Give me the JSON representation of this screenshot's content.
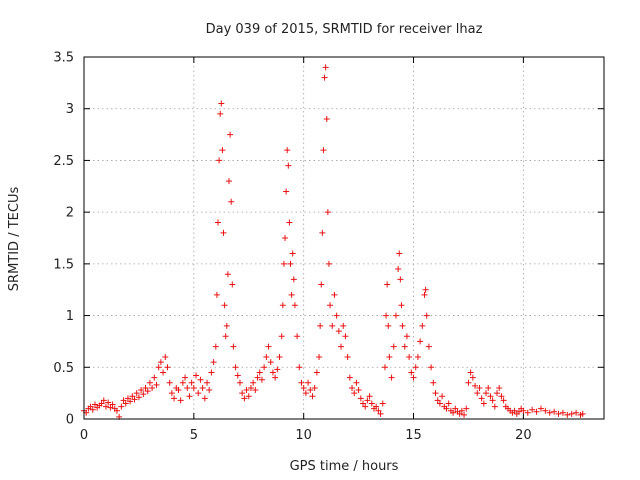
{
  "chart_data": {
    "type": "scatter",
    "title": "Day 039 of 2015, SRMTID for receiver lhaz",
    "xlabel": "GPS time / hours",
    "ylabel": "SRMTID / TECUs",
    "xlim": [
      0,
      23.67
    ],
    "ylim": [
      0,
      3.5
    ],
    "xticks": [
      0,
      5,
      10,
      15,
      20
    ],
    "yticks": [
      0,
      0.5,
      1,
      1.5,
      2,
      2.5,
      3,
      3.5
    ],
    "xtick_labels": [
      "0",
      "5",
      "10",
      "15",
      "20"
    ],
    "ytick_labels": [
      "0",
      "0.5",
      "1",
      "1.5",
      "2",
      "2.5",
      "3",
      "3.5"
    ],
    "grid": true,
    "marker": "+",
    "color": "#e81414",
    "series": [
      {
        "name": "SRMTID",
        "points": [
          [
            0.0,
            0.08
          ],
          [
            0.1,
            0.06
          ],
          [
            0.2,
            0.1
          ],
          [
            0.3,
            0.12
          ],
          [
            0.4,
            0.09
          ],
          [
            0.5,
            0.14
          ],
          [
            0.6,
            0.11
          ],
          [
            0.7,
            0.13
          ],
          [
            0.8,
            0.15
          ],
          [
            0.9,
            0.18
          ],
          [
            1.0,
            0.12
          ],
          [
            1.1,
            0.16
          ],
          [
            1.2,
            0.11
          ],
          [
            1.3,
            0.14
          ],
          [
            1.4,
            0.1
          ],
          [
            1.5,
            0.08
          ],
          [
            1.6,
            0.02
          ],
          [
            1.7,
            0.12
          ],
          [
            1.8,
            0.18
          ],
          [
            1.9,
            0.15
          ],
          [
            2.0,
            0.2
          ],
          [
            2.1,
            0.17
          ],
          [
            2.2,
            0.22
          ],
          [
            2.3,
            0.19
          ],
          [
            2.4,
            0.25
          ],
          [
            2.5,
            0.21
          ],
          [
            2.6,
            0.28
          ],
          [
            2.7,
            0.24
          ],
          [
            2.8,
            0.3
          ],
          [
            2.9,
            0.27
          ],
          [
            3.0,
            0.35
          ],
          [
            3.1,
            0.3
          ],
          [
            3.2,
            0.4
          ],
          [
            3.3,
            0.33
          ],
          [
            3.4,
            0.5
          ],
          [
            3.5,
            0.55
          ],
          [
            3.6,
            0.45
          ],
          [
            3.7,
            0.6
          ],
          [
            3.8,
            0.5
          ],
          [
            3.9,
            0.35
          ],
          [
            4.0,
            0.25
          ],
          [
            4.1,
            0.2
          ],
          [
            4.2,
            0.3
          ],
          [
            4.3,
            0.28
          ],
          [
            4.4,
            0.18
          ],
          [
            4.5,
            0.35
          ],
          [
            4.6,
            0.4
          ],
          [
            4.7,
            0.3
          ],
          [
            4.8,
            0.22
          ],
          [
            4.9,
            0.35
          ],
          [
            5.0,
            0.3
          ],
          [
            5.1,
            0.42
          ],
          [
            5.2,
            0.25
          ],
          [
            5.3,
            0.38
          ],
          [
            5.4,
            0.3
          ],
          [
            5.5,
            0.2
          ],
          [
            5.6,
            0.35
          ],
          [
            5.7,
            0.28
          ],
          [
            5.8,
            0.45
          ],
          [
            5.9,
            0.55
          ],
          [
            6.0,
            0.7
          ],
          [
            6.05,
            1.2
          ],
          [
            6.1,
            1.9
          ],
          [
            6.15,
            2.5
          ],
          [
            6.2,
            2.95
          ],
          [
            6.25,
            3.05
          ],
          [
            6.3,
            2.6
          ],
          [
            6.35,
            1.8
          ],
          [
            6.4,
            1.1
          ],
          [
            6.45,
            0.8
          ],
          [
            6.5,
            0.9
          ],
          [
            6.55,
            1.4
          ],
          [
            6.6,
            2.3
          ],
          [
            6.65,
            2.75
          ],
          [
            6.7,
            2.1
          ],
          [
            6.75,
            1.3
          ],
          [
            6.8,
            0.7
          ],
          [
            6.9,
            0.5
          ],
          [
            7.0,
            0.42
          ],
          [
            7.1,
            0.35
          ],
          [
            7.2,
            0.25
          ],
          [
            7.3,
            0.2
          ],
          [
            7.4,
            0.28
          ],
          [
            7.5,
            0.22
          ],
          [
            7.6,
            0.3
          ],
          [
            7.7,
            0.35
          ],
          [
            7.8,
            0.28
          ],
          [
            7.9,
            0.4
          ],
          [
            8.0,
            0.45
          ],
          [
            8.1,
            0.38
          ],
          [
            8.2,
            0.5
          ],
          [
            8.3,
            0.6
          ],
          [
            8.4,
            0.7
          ],
          [
            8.5,
            0.55
          ],
          [
            8.6,
            0.45
          ],
          [
            8.7,
            0.4
          ],
          [
            8.8,
            0.48
          ],
          [
            8.9,
            0.6
          ],
          [
            9.0,
            0.8
          ],
          [
            9.05,
            1.1
          ],
          [
            9.1,
            1.5
          ],
          [
            9.15,
            1.75
          ],
          [
            9.2,
            2.2
          ],
          [
            9.25,
            2.6
          ],
          [
            9.3,
            2.45
          ],
          [
            9.35,
            1.9
          ],
          [
            9.4,
            1.5
          ],
          [
            9.45,
            1.2
          ],
          [
            9.5,
            1.6
          ],
          [
            9.55,
            1.35
          ],
          [
            9.6,
            1.1
          ],
          [
            9.7,
            0.8
          ],
          [
            9.8,
            0.5
          ],
          [
            9.9,
            0.35
          ],
          [
            10.0,
            0.3
          ],
          [
            10.1,
            0.25
          ],
          [
            10.2,
            0.35
          ],
          [
            10.3,
            0.28
          ],
          [
            10.4,
            0.22
          ],
          [
            10.5,
            0.3
          ],
          [
            10.6,
            0.45
          ],
          [
            10.7,
            0.6
          ],
          [
            10.75,
            0.9
          ],
          [
            10.8,
            1.3
          ],
          [
            10.85,
            1.8
          ],
          [
            10.9,
            2.6
          ],
          [
            10.95,
            3.3
          ],
          [
            11.0,
            3.4
          ],
          [
            11.05,
            2.9
          ],
          [
            11.1,
            2.0
          ],
          [
            11.15,
            1.5
          ],
          [
            11.2,
            1.1
          ],
          [
            11.3,
            0.9
          ],
          [
            11.4,
            1.2
          ],
          [
            11.5,
            1.0
          ],
          [
            11.6,
            0.85
          ],
          [
            11.7,
            0.7
          ],
          [
            11.8,
            0.9
          ],
          [
            11.9,
            0.8
          ],
          [
            12.0,
            0.6
          ],
          [
            12.1,
            0.4
          ],
          [
            12.2,
            0.3
          ],
          [
            12.3,
            0.25
          ],
          [
            12.4,
            0.35
          ],
          [
            12.5,
            0.28
          ],
          [
            12.6,
            0.2
          ],
          [
            12.7,
            0.15
          ],
          [
            12.8,
            0.12
          ],
          [
            12.9,
            0.18
          ],
          [
            13.0,
            0.22
          ],
          [
            13.1,
            0.15
          ],
          [
            13.2,
            0.1
          ],
          [
            13.3,
            0.12
          ],
          [
            13.4,
            0.08
          ],
          [
            13.5,
            0.05
          ],
          [
            13.6,
            0.15
          ],
          [
            13.7,
            0.5
          ],
          [
            13.75,
            1.0
          ],
          [
            13.8,
            1.3
          ],
          [
            13.85,
            0.9
          ],
          [
            13.9,
            0.6
          ],
          [
            14.0,
            0.4
          ],
          [
            14.1,
            0.7
          ],
          [
            14.2,
            1.0
          ],
          [
            14.3,
            1.45
          ],
          [
            14.35,
            1.6
          ],
          [
            14.4,
            1.35
          ],
          [
            14.45,
            1.1
          ],
          [
            14.5,
            0.9
          ],
          [
            14.6,
            0.7
          ],
          [
            14.7,
            0.8
          ],
          [
            14.8,
            0.6
          ],
          [
            14.9,
            0.45
          ],
          [
            15.0,
            0.4
          ],
          [
            15.1,
            0.5
          ],
          [
            15.2,
            0.6
          ],
          [
            15.3,
            0.75
          ],
          [
            15.4,
            0.9
          ],
          [
            15.5,
            1.2
          ],
          [
            15.55,
            1.25
          ],
          [
            15.6,
            1.0
          ],
          [
            15.7,
            0.7
          ],
          [
            15.8,
            0.5
          ],
          [
            15.9,
            0.35
          ],
          [
            16.0,
            0.25
          ],
          [
            16.1,
            0.18
          ],
          [
            16.2,
            0.15
          ],
          [
            16.3,
            0.22
          ],
          [
            16.4,
            0.12
          ],
          [
            16.5,
            0.1
          ],
          [
            16.6,
            0.15
          ],
          [
            16.7,
            0.08
          ],
          [
            16.8,
            0.06
          ],
          [
            16.9,
            0.1
          ],
          [
            17.0,
            0.07
          ],
          [
            17.1,
            0.05
          ],
          [
            17.2,
            0.08
          ],
          [
            17.3,
            0.04
          ],
          [
            17.4,
            0.1
          ],
          [
            17.5,
            0.35
          ],
          [
            17.6,
            0.45
          ],
          [
            17.7,
            0.4
          ],
          [
            17.8,
            0.32
          ],
          [
            17.9,
            0.25
          ],
          [
            18.0,
            0.3
          ],
          [
            18.1,
            0.2
          ],
          [
            18.2,
            0.15
          ],
          [
            18.3,
            0.25
          ],
          [
            18.4,
            0.3
          ],
          [
            18.5,
            0.22
          ],
          [
            18.6,
            0.18
          ],
          [
            18.7,
            0.12
          ],
          [
            18.8,
            0.25
          ],
          [
            18.9,
            0.3
          ],
          [
            19.0,
            0.22
          ],
          [
            19.1,
            0.18
          ],
          [
            19.2,
            0.12
          ],
          [
            19.3,
            0.1
          ],
          [
            19.4,
            0.08
          ],
          [
            19.5,
            0.06
          ],
          [
            19.6,
            0.08
          ],
          [
            19.7,
            0.05
          ],
          [
            19.8,
            0.07
          ],
          [
            19.9,
            0.1
          ],
          [
            20.0,
            0.08
          ],
          [
            20.2,
            0.06
          ],
          [
            20.4,
            0.09
          ],
          [
            20.6,
            0.07
          ],
          [
            20.8,
            0.1
          ],
          [
            21.0,
            0.08
          ],
          [
            21.2,
            0.06
          ],
          [
            21.4,
            0.07
          ],
          [
            21.6,
            0.05
          ],
          [
            21.8,
            0.06
          ],
          [
            22.0,
            0.04
          ],
          [
            22.2,
            0.05
          ],
          [
            22.4,
            0.06
          ],
          [
            22.6,
            0.04
          ],
          [
            22.7,
            0.05
          ]
        ]
      }
    ]
  }
}
